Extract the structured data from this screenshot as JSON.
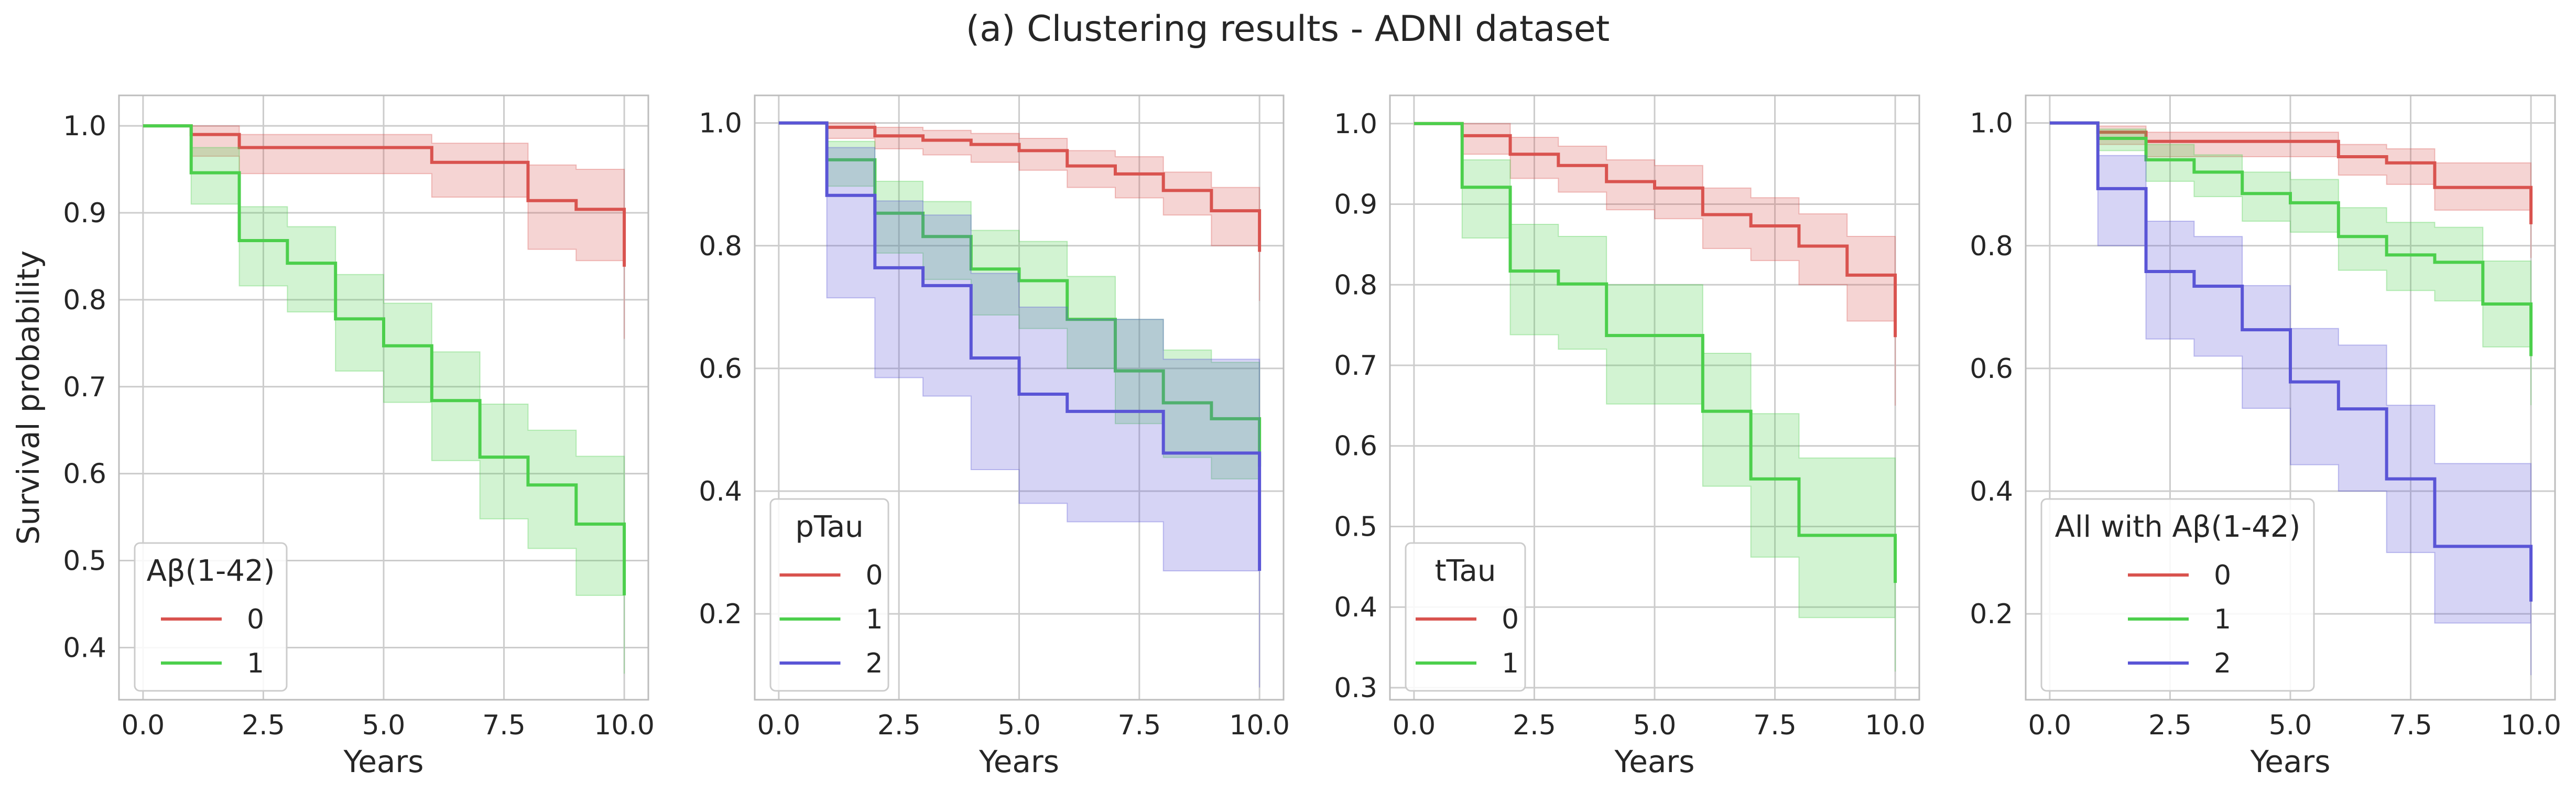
{
  "figure_title": "(a) Clustering results - ADNI dataset",
  "colors": {
    "0": "#d9534f",
    "1": "#4ccf4c",
    "2": "#5a55d6",
    "grid": "#cccccc",
    "frame": "#bdbdbd"
  },
  "chart_data": [
    {
      "type": "line",
      "step": "post",
      "xlabel": "Years",
      "ylabel": "Survival probability",
      "xlim": [
        -0.5,
        10.5
      ],
      "ylim": [
        0.34,
        1.035
      ],
      "xticks": [
        "0.0",
        "2.5",
        "5.0",
        "7.5",
        "10.0"
      ],
      "xtick_values": [
        0,
        2.5,
        5,
        7.5,
        10
      ],
      "yticks": [
        "0.4",
        "0.5",
        "0.6",
        "0.7",
        "0.8",
        "0.9",
        "1.0"
      ],
      "ytick_values": [
        0.4,
        0.5,
        0.6,
        0.7,
        0.8,
        0.9,
        1.0
      ],
      "grid": true,
      "legend": {
        "title": "Aβ(1-42)",
        "placement": "lower-left"
      },
      "series": [
        {
          "name": "0",
          "color_key": "0",
          "x": [
            0,
            1,
            2,
            6,
            8,
            9,
            10
          ],
          "y": [
            1.0,
            0.99,
            0.975,
            0.958,
            0.914,
            0.904,
            0.838
          ],
          "ci_lower": [
            1.0,
            0.965,
            0.945,
            0.918,
            0.858,
            0.845,
            0.755
          ],
          "ci_upper": [
            1.0,
            1.0,
            0.99,
            0.98,
            0.955,
            0.95,
            0.9
          ]
        },
        {
          "name": "1",
          "color_key": "1",
          "x": [
            0,
            1,
            2,
            3,
            4,
            5,
            6,
            7,
            8,
            9,
            10
          ],
          "y": [
            1.0,
            0.946,
            0.868,
            0.842,
            0.778,
            0.747,
            0.684,
            0.619,
            0.587,
            0.542,
            0.46
          ],
          "ci_lower": [
            1.0,
            0.91,
            0.816,
            0.786,
            0.718,
            0.682,
            0.615,
            0.548,
            0.514,
            0.46,
            0.37
          ],
          "ci_upper": [
            1.0,
            0.975,
            0.907,
            0.884,
            0.829,
            0.796,
            0.74,
            0.68,
            0.65,
            0.62,
            0.55
          ]
        }
      ]
    },
    {
      "type": "line",
      "step": "post",
      "xlabel": "Years",
      "ylabel": "",
      "xlim": [
        -0.5,
        10.5
      ],
      "ylim": [
        0.06,
        1.045
      ],
      "xticks": [
        "0.0",
        "2.5",
        "5.0",
        "7.5",
        "10.0"
      ],
      "xtick_values": [
        0,
        2.5,
        5,
        7.5,
        10
      ],
      "yticks": [
        "0.2",
        "0.4",
        "0.6",
        "0.8",
        "1.0"
      ],
      "ytick_values": [
        0.2,
        0.4,
        0.6,
        0.8,
        1.0
      ],
      "grid": true,
      "legend": {
        "title": "pTau",
        "placement": "lower-left"
      },
      "series": [
        {
          "name": "0",
          "color_key": "0",
          "x": [
            0,
            1,
            2,
            3,
            4,
            5,
            6,
            7,
            8,
            9,
            10
          ],
          "y": [
            1.0,
            0.993,
            0.979,
            0.972,
            0.965,
            0.955,
            0.93,
            0.917,
            0.89,
            0.857,
            0.79
          ],
          "ci_lower": [
            1.0,
            0.975,
            0.958,
            0.948,
            0.936,
            0.923,
            0.895,
            0.878,
            0.85,
            0.8,
            0.71
          ],
          "ci_upper": [
            1.0,
            1.0,
            0.993,
            0.988,
            0.983,
            0.975,
            0.955,
            0.945,
            0.92,
            0.895,
            0.85
          ]
        },
        {
          "name": "1",
          "color_key": "1",
          "x": [
            0,
            1,
            2,
            3,
            4,
            5,
            6,
            7,
            8,
            9,
            10
          ],
          "y": [
            1.0,
            0.94,
            0.853,
            0.815,
            0.762,
            0.743,
            0.68,
            0.596,
            0.544,
            0.518,
            0.44
          ],
          "ci_lower": [
            1.0,
            0.897,
            0.788,
            0.745,
            0.687,
            0.665,
            0.6,
            0.51,
            0.455,
            0.42,
            0.34
          ],
          "ci_upper": [
            1.0,
            0.97,
            0.905,
            0.872,
            0.825,
            0.807,
            0.75,
            0.68,
            0.63,
            0.61,
            0.54
          ]
        },
        {
          "name": "2",
          "color_key": "2",
          "x": [
            0,
            1,
            2,
            3,
            4,
            5,
            6,
            8,
            10
          ],
          "y": [
            1.0,
            0.882,
            0.764,
            0.735,
            0.617,
            0.558,
            0.53,
            0.462,
            0.27
          ],
          "ci_lower": [
            1.0,
            0.715,
            0.585,
            0.555,
            0.435,
            0.38,
            0.35,
            0.27,
            0.08
          ],
          "ci_upper": [
            1.0,
            0.96,
            0.873,
            0.85,
            0.755,
            0.7,
            0.68,
            0.615,
            0.44
          ]
        }
      ]
    },
    {
      "type": "line",
      "step": "post",
      "xlabel": "Years",
      "ylabel": "",
      "xlim": [
        -0.5,
        10.5
      ],
      "ylim": [
        0.285,
        1.035
      ],
      "xticks": [
        "0.0",
        "2.5",
        "5.0",
        "7.5",
        "10.0"
      ],
      "xtick_values": [
        0,
        2.5,
        5,
        7.5,
        10
      ],
      "yticks": [
        "0.3",
        "0.4",
        "0.5",
        "0.6",
        "0.7",
        "0.8",
        "0.9",
        "1.0"
      ],
      "ytick_values": [
        0.3,
        0.4,
        0.5,
        0.6,
        0.7,
        0.8,
        0.9,
        1.0
      ],
      "grid": true,
      "legend": {
        "title": "tTau",
        "placement": "lower-left"
      },
      "series": [
        {
          "name": "0",
          "color_key": "0",
          "x": [
            0,
            1,
            2,
            3,
            4,
            5,
            6,
            7,
            8,
            9,
            10
          ],
          "y": [
            1.0,
            0.985,
            0.962,
            0.948,
            0.928,
            0.92,
            0.887,
            0.873,
            0.848,
            0.812,
            0.735
          ],
          "ci_lower": [
            1.0,
            0.962,
            0.932,
            0.915,
            0.893,
            0.882,
            0.845,
            0.83,
            0.8,
            0.755,
            0.65
          ],
          "ci_upper": [
            1.0,
            1.0,
            0.983,
            0.972,
            0.955,
            0.948,
            0.92,
            0.908,
            0.888,
            0.86,
            0.8
          ]
        },
        {
          "name": "1",
          "color_key": "1",
          "x": [
            0,
            1,
            2,
            3,
            4,
            6,
            7,
            8,
            10
          ],
          "y": [
            1.0,
            0.921,
            0.817,
            0.801,
            0.737,
            0.643,
            0.559,
            0.489,
            0.43
          ],
          "ci_lower": [
            1.0,
            0.858,
            0.738,
            0.72,
            0.652,
            0.55,
            0.462,
            0.387,
            0.32
          ],
          "ci_upper": [
            1.0,
            0.955,
            0.875,
            0.86,
            0.8,
            0.715,
            0.64,
            0.585,
            0.53
          ]
        }
      ]
    },
    {
      "type": "line",
      "step": "post",
      "xlabel": "Years",
      "ylabel": "",
      "xlim": [
        -0.5,
        10.5
      ],
      "ylim": [
        0.06,
        1.045
      ],
      "xticks": [
        "0.0",
        "2.5",
        "5.0",
        "7.5",
        "10.0"
      ],
      "xtick_values": [
        0,
        2.5,
        5,
        7.5,
        10
      ],
      "yticks": [
        "0.2",
        "0.4",
        "0.6",
        "0.8",
        "1.0"
      ],
      "ytick_values": [
        0.2,
        0.4,
        0.6,
        0.8,
        1.0
      ],
      "grid": true,
      "legend": {
        "title": "All with Aβ(1-42)",
        "placement": "lower-left"
      },
      "series": [
        {
          "name": "0",
          "color_key": "0",
          "x": [
            0,
            1,
            2,
            6,
            7,
            8,
            10
          ],
          "y": [
            1.0,
            0.985,
            0.97,
            0.945,
            0.935,
            0.895,
            0.835
          ],
          "ci_lower": [
            1.0,
            0.965,
            0.945,
            0.915,
            0.9,
            0.858,
            0.78
          ],
          "ci_upper": [
            1.0,
            0.995,
            0.985,
            0.965,
            0.958,
            0.935,
            0.895
          ]
        },
        {
          "name": "1",
          "color_key": "1",
          "x": [
            0,
            1,
            2,
            3,
            4,
            5,
            6,
            7,
            8,
            9,
            10
          ],
          "y": [
            1.0,
            0.975,
            0.94,
            0.92,
            0.885,
            0.87,
            0.815,
            0.785,
            0.773,
            0.705,
            0.62
          ],
          "ci_lower": [
            1.0,
            0.955,
            0.905,
            0.88,
            0.84,
            0.822,
            0.76,
            0.727,
            0.71,
            0.635,
            0.54
          ],
          "ci_upper": [
            1.0,
            0.99,
            0.965,
            0.948,
            0.92,
            0.908,
            0.862,
            0.838,
            0.83,
            0.775,
            0.7
          ]
        },
        {
          "name": "2",
          "color_key": "2",
          "x": [
            0,
            1,
            2,
            3,
            4,
            5,
            6,
            7,
            8,
            10
          ],
          "y": [
            1.0,
            0.893,
            0.758,
            0.734,
            0.663,
            0.578,
            0.534,
            0.42,
            0.31,
            0.22
          ],
          "ci_lower": [
            1.0,
            0.8,
            0.648,
            0.62,
            0.535,
            0.443,
            0.4,
            0.3,
            0.185,
            0.1
          ],
          "ci_upper": [
            1.0,
            0.947,
            0.84,
            0.815,
            0.735,
            0.665,
            0.638,
            0.54,
            0.445,
            0.38
          ]
        }
      ]
    }
  ]
}
